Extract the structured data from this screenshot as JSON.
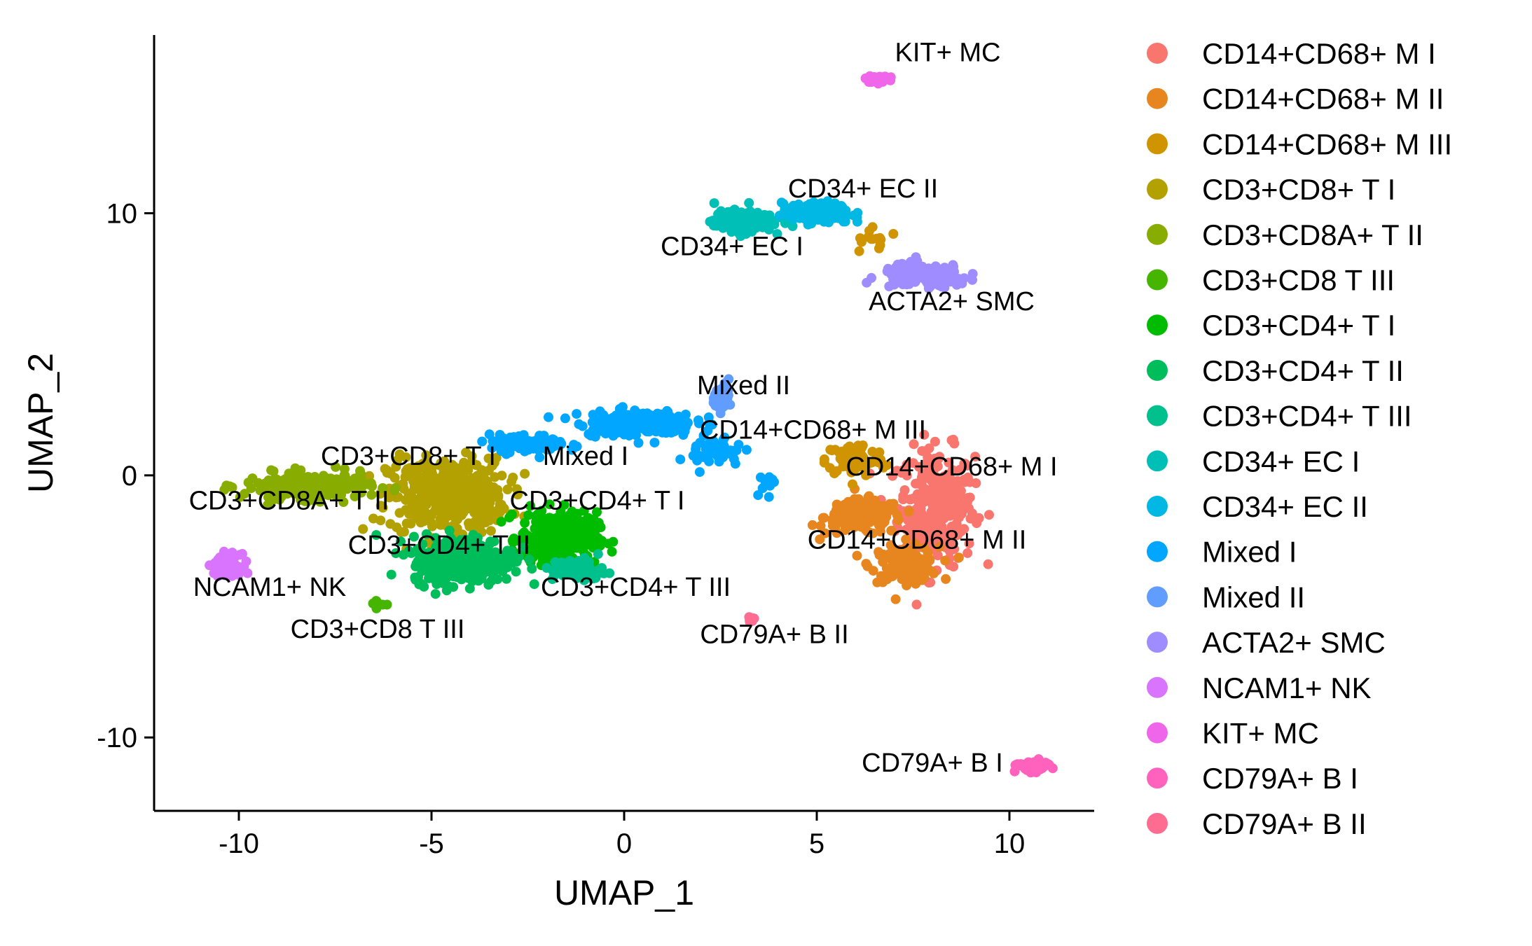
{
  "chart_data": {
    "type": "scatter",
    "title": "",
    "xlabel": "UMAP_1",
    "ylabel": "UMAP_2",
    "xlim": [
      -12.2,
      12.2
    ],
    "ylim": [
      -12.8,
      16.8
    ],
    "xticks": [
      {
        "value": -10,
        "label": "-10"
      },
      {
        "value": -5,
        "label": "-5"
      },
      {
        "value": 0,
        "label": "0"
      },
      {
        "value": 5,
        "label": "5"
      },
      {
        "value": 10,
        "label": "10"
      }
    ],
    "yticks": [
      {
        "value": -10,
        "label": "-10"
      },
      {
        "value": 0,
        "label": "0"
      },
      {
        "value": 10,
        "label": "10"
      }
    ],
    "grid": false,
    "legend_position": "right",
    "series": [
      {
        "name": "CD14+CD68+ M I",
        "color": "#F8766D",
        "label": "CD14+CD68+ M I",
        "label_at": [
          8.5,
          0.0
        ],
        "blobs": [
          {
            "center": [
              8.1,
              -1.2
            ],
            "spread": [
              0.9,
              2.0
            ],
            "n": 300
          }
        ]
      },
      {
        "name": "CD14+CD68+ M II",
        "color": "#E7851E",
        "label": "CD14+CD68+ M II",
        "label_at": [
          7.6,
          -2.8
        ],
        "blobs": [
          {
            "center": [
              6.2,
              -1.6
            ],
            "spread": [
              0.9,
              0.6
            ],
            "n": 160
          },
          {
            "center": [
              7.3,
              -3.4
            ],
            "spread": [
              0.8,
              0.6
            ],
            "n": 120
          }
        ]
      },
      {
        "name": "CD14+CD68+ M III",
        "color": "#D09400",
        "label": "CD14+CD68+ M III",
        "label_at": [
          4.9,
          1.4
        ],
        "blobs": [
          {
            "center": [
              6.0,
              0.6
            ],
            "spread": [
              0.7,
              0.6
            ],
            "n": 80
          },
          {
            "center": [
              6.5,
              9.0
            ],
            "spread": [
              0.6,
              0.5
            ],
            "n": 14
          }
        ]
      },
      {
        "name": "CD3+CD8+ T I",
        "color": "#B2A100",
        "label": "CD3+CD8+ T I",
        "label_at": [
          -5.6,
          0.4
        ],
        "blobs": [
          {
            "center": [
              -4.6,
              -0.8
            ],
            "spread": [
              1.4,
              1.3
            ],
            "n": 420
          }
        ]
      },
      {
        "name": "CD3+CD8A+ T II",
        "color": "#89AC00",
        "label": "CD3+CD8A+ T II",
        "label_at": [
          -8.7,
          -1.3
        ],
        "blobs": [
          {
            "center": [
              -8.2,
              -0.4
            ],
            "spread": [
              1.5,
              0.45
            ],
            "n": 220
          }
        ]
      },
      {
        "name": "CD3+CD8 T III",
        "color": "#45B500",
        "label": "CD3+CD8 T III",
        "label_at": [
          -6.4,
          -6.2
        ],
        "blobs": [
          {
            "center": [
              -6.4,
              -4.9
            ],
            "spread": [
              0.15,
              0.15
            ],
            "n": 10
          }
        ]
      },
      {
        "name": "CD3+CD4+ T I",
        "color": "#00BC00",
        "label": "CD3+CD4+ T I",
        "label_at": [
          -0.7,
          -1.3
        ],
        "blobs": [
          {
            "center": [
              -1.7,
              -2.4
            ],
            "spread": [
              0.9,
              0.9
            ],
            "n": 320
          }
        ]
      },
      {
        "name": "CD3+CD4+ T II",
        "color": "#00BD5C",
        "label": "CD3+CD4+ T II",
        "label_at": [
          -4.8,
          -3.0
        ],
        "blobs": [
          {
            "center": [
              -4.2,
              -3.2
            ],
            "spread": [
              1.2,
              0.8
            ],
            "n": 360
          }
        ]
      },
      {
        "name": "CD3+CD4+ T III",
        "color": "#00C08E",
        "label": "CD3+CD4+ T III",
        "label_at": [
          0.3,
          -4.6
        ],
        "blobs": [
          {
            "center": [
              -1.2,
              -3.6
            ],
            "spread": [
              0.6,
              0.4
            ],
            "n": 80
          }
        ]
      },
      {
        "name": "CD34+ EC I",
        "color": "#00BFB6",
        "label": "CD34+ EC I",
        "label_at": [
          2.8,
          8.4
        ],
        "blobs": [
          {
            "center": [
              3.1,
              9.7
            ],
            "spread": [
              0.7,
              0.35
            ],
            "n": 200
          }
        ]
      },
      {
        "name": "CD34+ EC II",
        "color": "#00B8E3",
        "label": "CD34+ EC II",
        "label_at": [
          6.2,
          10.6
        ],
        "blobs": [
          {
            "center": [
              5.0,
              10.0
            ],
            "spread": [
              0.8,
              0.35
            ],
            "n": 150
          }
        ]
      },
      {
        "name": "Mixed I",
        "color": "#00A6FF",
        "label": "Mixed I",
        "label_at": [
          -1.0,
          0.4
        ],
        "blobs": [
          {
            "center": [
              0.3,
              2.0
            ],
            "spread": [
              1.4,
              0.45
            ],
            "n": 190
          },
          {
            "center": [
              -2.5,
              1.2
            ],
            "spread": [
              0.9,
              0.3
            ],
            "n": 110
          },
          {
            "center": [
              2.4,
              0.9
            ],
            "spread": [
              0.6,
              0.6
            ],
            "n": 45
          },
          {
            "center": [
              3.7,
              -0.3
            ],
            "spread": [
              0.3,
              0.35
            ],
            "n": 10
          }
        ]
      },
      {
        "name": "Mixed II",
        "color": "#619CFF",
        "label": "Mixed II",
        "label_at": [
          3.1,
          3.1
        ],
        "blobs": [
          {
            "center": [
              2.6,
              3.0
            ],
            "spread": [
              0.25,
              0.45
            ],
            "n": 30
          }
        ]
      },
      {
        "name": "ACTA2+ SMC",
        "color": "#9F8CFF",
        "label": "ACTA2+ SMC",
        "label_at": [
          8.5,
          6.3
        ],
        "blobs": [
          {
            "center": [
              7.8,
              7.6
            ],
            "spread": [
              1.0,
              0.4
            ],
            "n": 170
          }
        ]
      },
      {
        "name": "NCAM1+ NK",
        "color": "#D874FD",
        "label": "NCAM1+ NK",
        "label_at": [
          -9.2,
          -4.6
        ],
        "blobs": [
          {
            "center": [
              -10.3,
              -3.4
            ],
            "spread": [
              0.3,
              0.35
            ],
            "n": 110
          }
        ]
      },
      {
        "name": "KIT+ MC",
        "color": "#F066EA",
        "label": "KIT+ MC",
        "label_at": [
          8.4,
          15.8
        ],
        "blobs": [
          {
            "center": [
              6.6,
              15.1
            ],
            "spread": [
              0.25,
              0.12
            ],
            "n": 40
          }
        ]
      },
      {
        "name": "CD79A+ B I",
        "color": "#FF62BC",
        "label": "CD79A+ B I",
        "label_at": [
          8.0,
          -11.3
        ],
        "blobs": [
          {
            "center": [
              10.6,
              -11.1
            ],
            "spread": [
              0.35,
              0.18
            ],
            "n": 90
          }
        ]
      },
      {
        "name": "CD79A+ B II",
        "color": "#FF6C91",
        "label": "CD79A+ B II",
        "label_at": [
          3.9,
          -6.4
        ],
        "blobs": [
          {
            "center": [
              3.3,
              -5.5
            ],
            "spread": [
              0.15,
              0.1
            ],
            "n": 10
          }
        ]
      }
    ]
  }
}
